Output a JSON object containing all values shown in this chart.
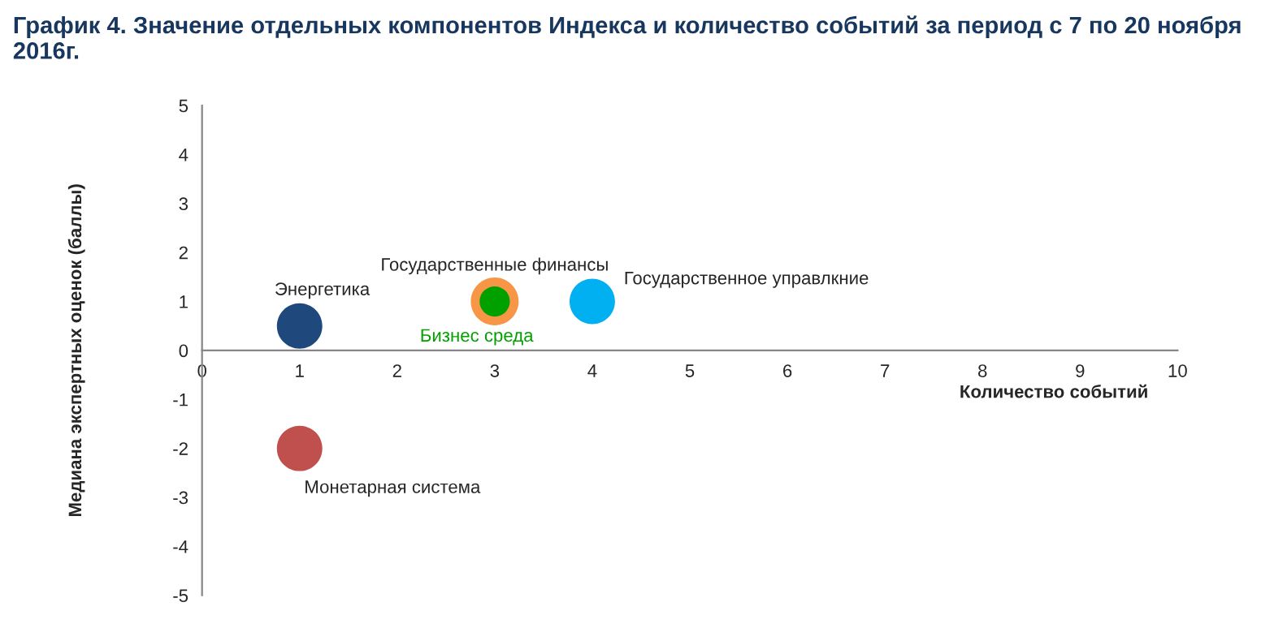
{
  "chart_data": {
    "type": "bubble",
    "title": "График 4. Значение отдельных компонентов Индекса и количество событий за период с 7 по 20 ноября 2016г.",
    "xlabel": "Количество событий",
    "ylabel": "Медиана экспертных оценок (баллы)",
    "xlim": [
      0,
      10
    ],
    "xticks": [
      0,
      1,
      2,
      3,
      4,
      5,
      6,
      7,
      8,
      9,
      10
    ],
    "ylim": [
      -5,
      5
    ],
    "yticks": [
      -5,
      -4,
      -3,
      -2,
      -1,
      0,
      1,
      2,
      3,
      4,
      5
    ],
    "grid": false,
    "legend": false,
    "series": [
      {
        "name": "Энергетика",
        "color": "#1f497d",
        "x": [
          1
        ],
        "values": [
          0.5
        ],
        "sizes": [
          0.9
        ]
      },
      {
        "name": "Монетарная система",
        "color": "#c0504d",
        "x": [
          1
        ],
        "values": [
          -2
        ],
        "sizes": [
          0.9
        ]
      },
      {
        "name": "Государственные финансы",
        "color": "#f79646",
        "x": [
          3
        ],
        "values": [
          1
        ],
        "sizes": [
          1
        ]
      },
      {
        "name": "Бизнес среда",
        "color": "#00a000",
        "x": [
          3
        ],
        "values": [
          1
        ],
        "sizes": [
          0.4
        ]
      },
      {
        "name": "Государственное управлкние",
        "color": "#00b0f0",
        "x": [
          4
        ],
        "values": [
          1
        ],
        "sizes": [
          0.9
        ]
      }
    ]
  }
}
